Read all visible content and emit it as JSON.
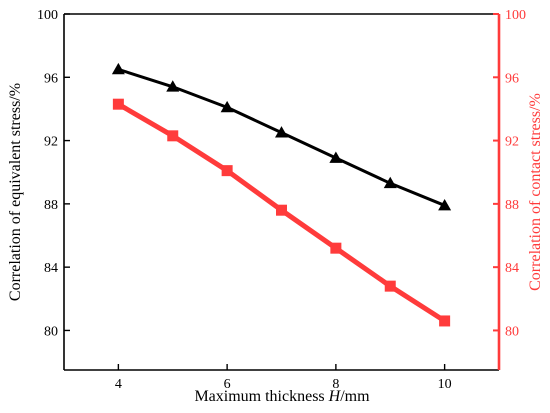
{
  "chart_data": {
    "type": "line",
    "x": [
      4,
      5,
      6,
      7,
      8,
      9,
      10
    ],
    "xlabel_prefix": "Maximum thickness ",
    "xlabel_var": "H",
    "xlabel_suffix": "/mm",
    "xlim": [
      3,
      11
    ],
    "xticks": [
      4,
      6,
      8,
      10
    ],
    "ylabel_left": "Correlation of equivalent stress/%",
    "ylabel_right": "Correlation of contact stress/%",
    "ylim_left": [
      77.5,
      100
    ],
    "yticks_left": [
      80,
      84,
      88,
      92,
      96,
      100
    ],
    "ylim_right": [
      77.5,
      100
    ],
    "yticks_right": [
      80,
      84,
      88,
      92,
      96,
      100
    ],
    "series": [
      {
        "axis": "left",
        "marker": "triangle",
        "color": "#000000",
        "values": [
          96.5,
          95.4,
          94.1,
          92.5,
          90.9,
          89.3,
          87.9
        ]
      },
      {
        "axis": "right",
        "marker": "square",
        "color": "#ff3b3b",
        "values": [
          94.3,
          92.3,
          90.1,
          87.6,
          85.2,
          82.8,
          80.6
        ]
      }
    ],
    "grid": false,
    "right_axis_color": "#ff3b3b"
  }
}
